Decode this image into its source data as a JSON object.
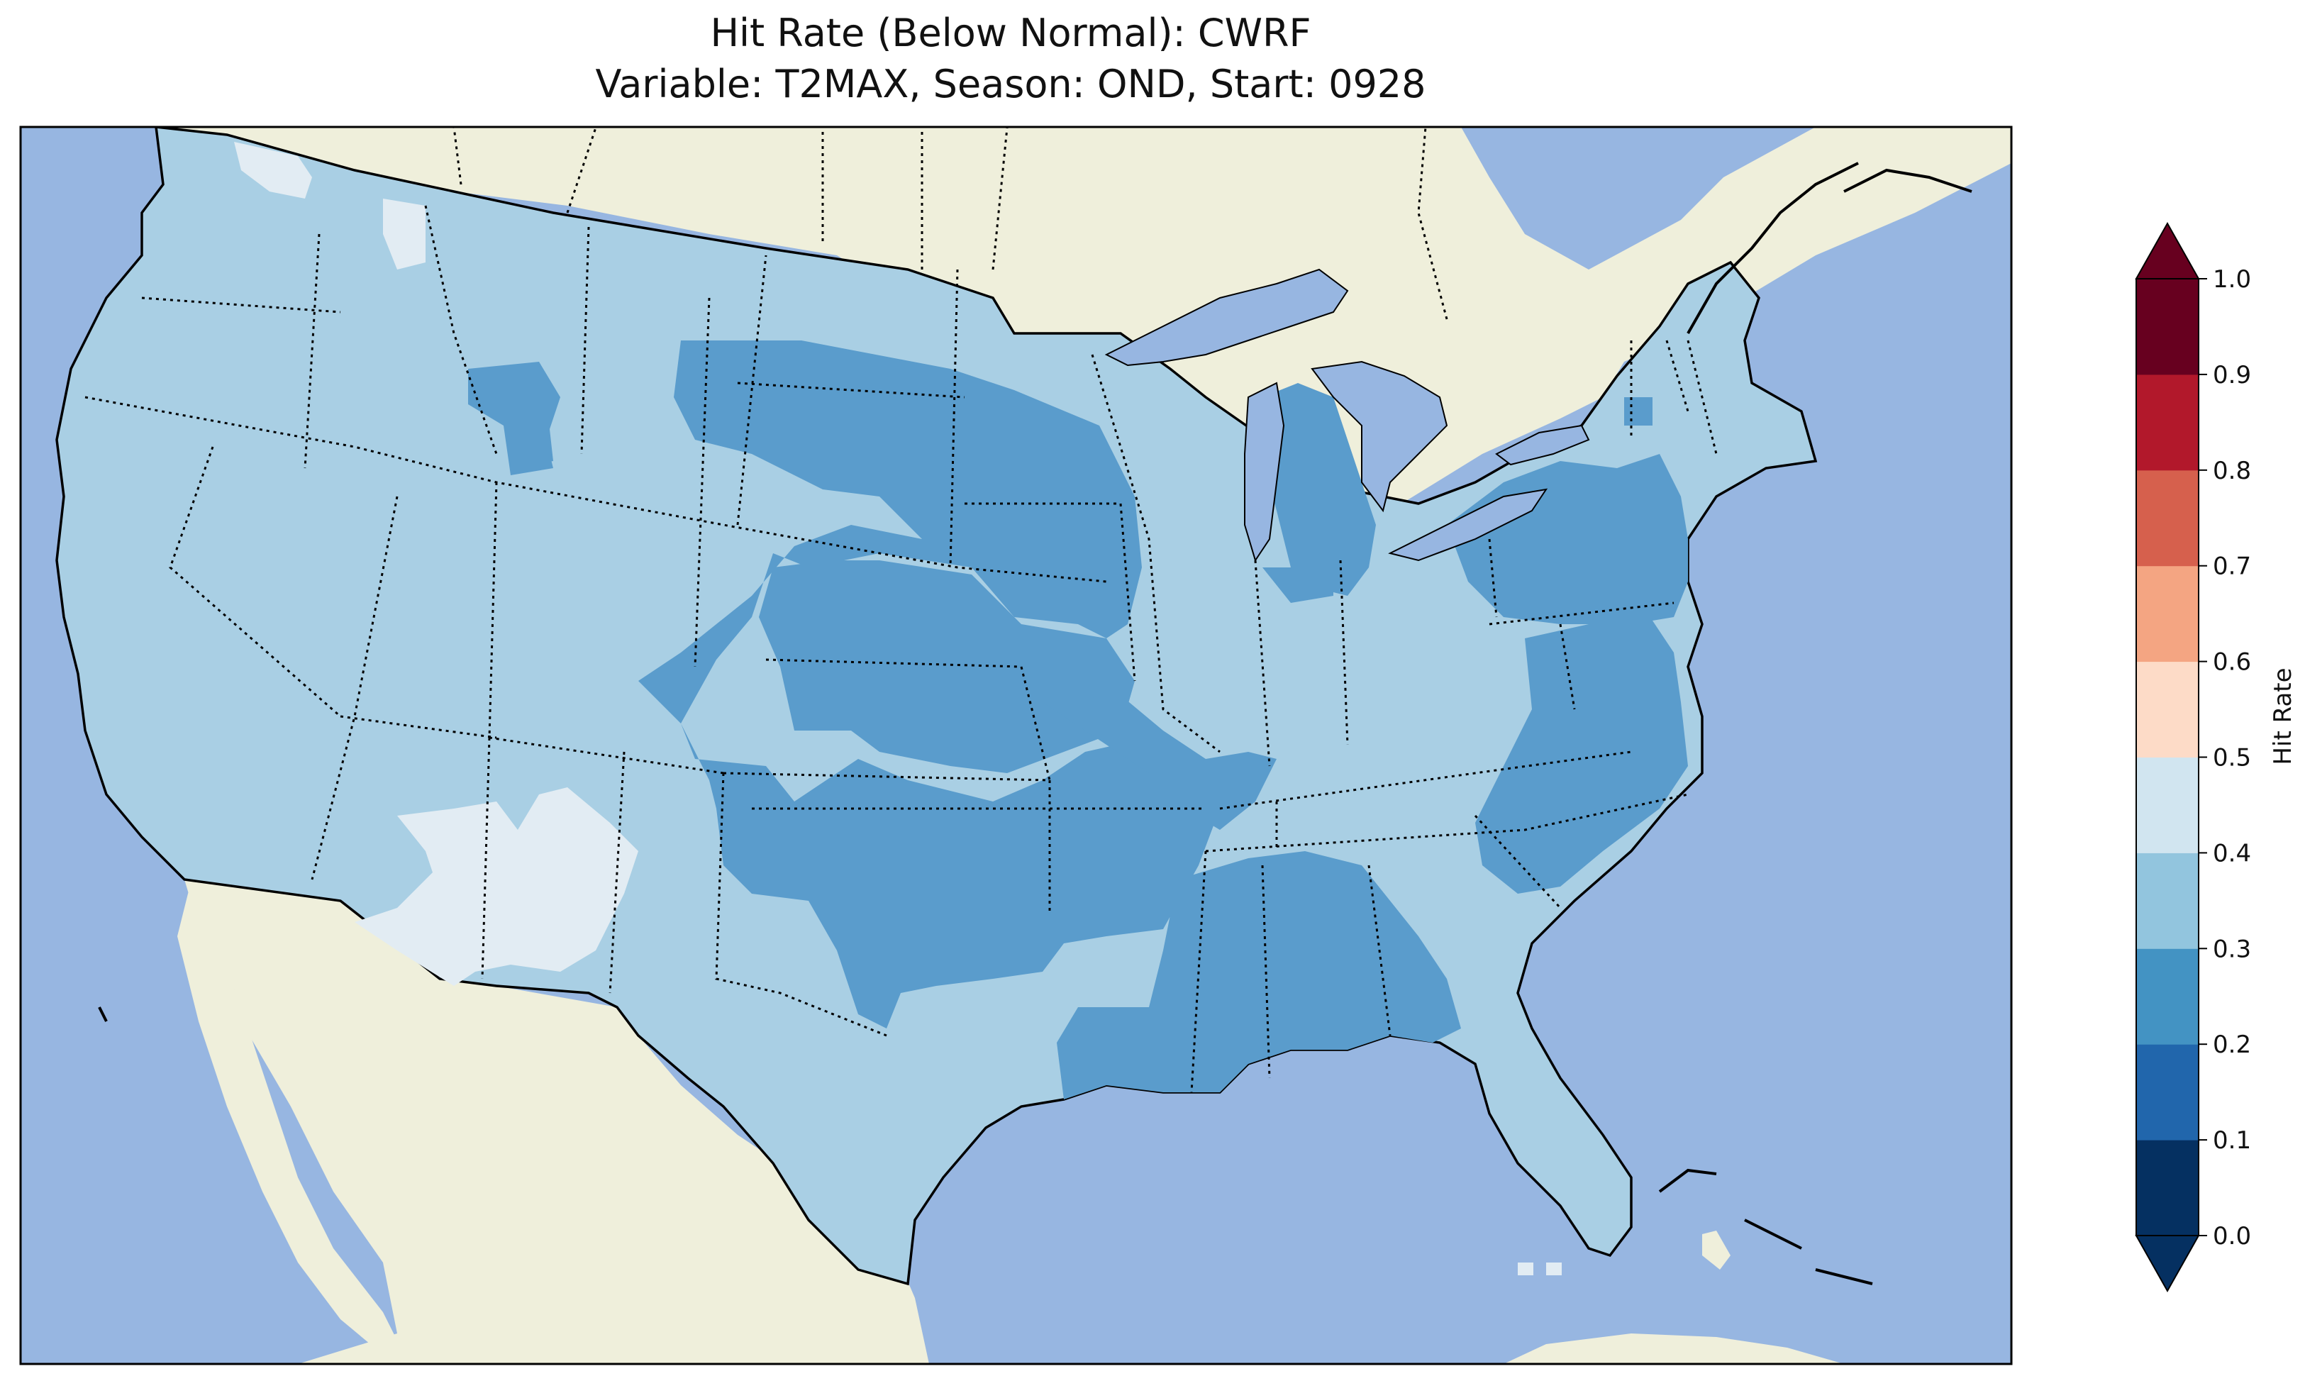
{
  "title_line1": "Hit Rate (Below Normal): CWRF",
  "title_line2": "Variable: T2MAX, Season: OND, Start: 0928",
  "colors": {
    "ocean": "#97b6e1",
    "land": "#efefdb",
    "lake": "#97b6e1",
    "border": "#000000"
  },
  "colorbar": {
    "label": "Hit Rate",
    "ticks": [
      "0.0",
      "0.1",
      "0.2",
      "0.3",
      "0.4",
      "0.5",
      "0.6",
      "0.7",
      "0.8",
      "0.9",
      "1.0"
    ],
    "colors": [
      "#053061",
      "#2166ac",
      "#4393c3",
      "#92c5de",
      "#d1e5f0",
      "#fddbc7",
      "#f4a582",
      "#d6604d",
      "#b2182b",
      "#67001f"
    ],
    "under_color": "#053061",
    "over_color": "#67001f",
    "extend": "both"
  },
  "classes": [
    {
      "range": "0.2-0.3",
      "color": "#5a9ccc"
    },
    {
      "range": "0.3-0.4",
      "color": "#a9cfe4"
    },
    {
      "range": "0.4-0.5",
      "color": "#e2ecf3"
    }
  ]
}
